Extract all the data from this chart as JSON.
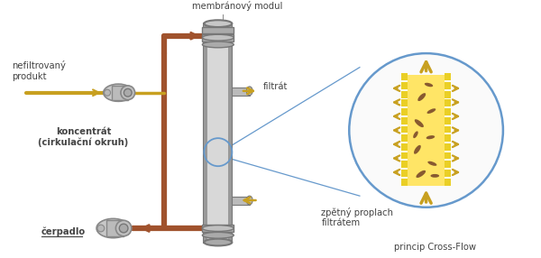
{
  "bg_color": "#ffffff",
  "labels": {
    "membranovy_modul": "membránový modul",
    "filtrat": "filtrát",
    "nefilterovany": "nefiltrovaný\nprodukt",
    "koncentrat": "koncentrát\n(cirkulační okruh)",
    "cerpadlo": "čerpadlo",
    "zpetny_proplach": "zpětný proplach\nfiltrátem",
    "princip": "princip Cross-Flow"
  },
  "colors": {
    "pipe_brown": "#A0522D",
    "pipe_gray": "#999999",
    "pipe_gray_dark": "#777777",
    "pipe_gray_light": "#CCCCCC",
    "arrow_yellow": "#C8A020",
    "circle_blue": "#6699CC",
    "membrane_yellow": "#FFE566",
    "membrane_border": "#E8C800",
    "particle_brown": "#7B4B2A",
    "text_dark": "#444444"
  },
  "font_size_label": 7.2
}
